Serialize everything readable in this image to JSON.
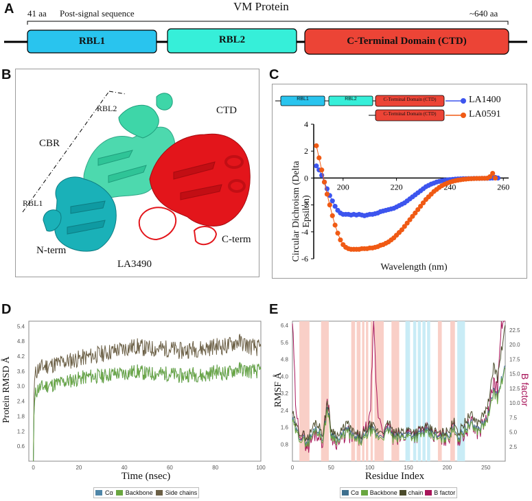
{
  "panelA": {
    "letter": "A",
    "title": "VM Protein",
    "start_label": "41 aa",
    "post_signal": "Post-signal sequence",
    "end_label": "~640 aa",
    "domains": [
      {
        "label": "RBL1",
        "color": "#29c4ee"
      },
      {
        "label": "RBL2",
        "color": "#36efd9"
      },
      {
        "label": "C-Terminal Domain (CTD)",
        "color": "#ec4436"
      }
    ]
  },
  "panelB": {
    "letter": "B",
    "labels": {
      "rbl2": "RBL2",
      "cbr": "CBR",
      "rbl1": "RBL1",
      "nterm": "N-term",
      "ctd": "CTD",
      "cterm": "C-term",
      "caption": "LA3490"
    },
    "colors": {
      "rbl1": "#1ab1b8",
      "rbl2": "#3ed6a8",
      "ctd": "#e3151b"
    }
  },
  "panelC": {
    "letter": "C",
    "legend": [
      {
        "name": "LA1400",
        "color": "#3d55ee",
        "domains": [
          "RBL1",
          "RBL2",
          "C-Terminal Domain (CTD)"
        ]
      },
      {
        "name": "LA0591",
        "color": "#f05a14",
        "domains": [
          "C-Terminal Domain (CTD)"
        ]
      }
    ]
  },
  "panelD": {
    "letter": "D",
    "legend": [
      {
        "name": "Cα",
        "color": "#4f86a8"
      },
      {
        "name": "Backbone",
        "color": "#6aa640"
      },
      {
        "name": "Side chains",
        "color": "#6b5f45"
      }
    ]
  },
  "panelE": {
    "letter": "E",
    "legend": [
      {
        "name": "Cα",
        "color": "#3e6f8e"
      },
      {
        "name": "Backbone",
        "color": "#6aa640"
      },
      {
        "name": "chain",
        "color": "#4a4a2a"
      },
      {
        "name": "B factor",
        "color": "#a8155a"
      }
    ],
    "shade_colors": {
      "pink": "#f9cfc7",
      "cyan": "#c9ecf6"
    }
  },
  "chart_data": [
    {
      "id": "cd_spectra",
      "type": "scatter",
      "title": "",
      "xlabel": "Wavelength (nm)",
      "ylabel": "Circular Dichroism (Delta Epsilon)",
      "xlim": [
        189,
        262
      ],
      "ylim": [
        -6,
        4
      ],
      "x_ticks": [
        200,
        220,
        240,
        260
      ],
      "y_ticks": [
        4,
        2,
        0,
        -2,
        -4,
        -6
      ],
      "series": [
        {
          "name": "LA1400",
          "color": "#3d55ee",
          "x": [
            190,
            191,
            192,
            193,
            194,
            195,
            196,
            197,
            198,
            199,
            200,
            201,
            202,
            203,
            204,
            205,
            206,
            207,
            208,
            209,
            210,
            211,
            212,
            213,
            214,
            215,
            216,
            217,
            218,
            219,
            220,
            221,
            222,
            223,
            224,
            225,
            226,
            227,
            228,
            229,
            230,
            231,
            232,
            233,
            234,
            235,
            236,
            237,
            238,
            239,
            240,
            241,
            242,
            243,
            244,
            245,
            246,
            247,
            248,
            249,
            250,
            251,
            252,
            253,
            254,
            255,
            256,
            257,
            258
          ],
          "y": [
            0.9,
            0.6,
            0.2,
            -0.3,
            -0.8,
            -1.3,
            -1.7,
            -2.1,
            -2.4,
            -2.6,
            -2.7,
            -2.7,
            -2.7,
            -2.75,
            -2.7,
            -2.75,
            -2.7,
            -2.75,
            -2.8,
            -2.75,
            -2.7,
            -2.7,
            -2.65,
            -2.6,
            -2.5,
            -2.45,
            -2.4,
            -2.35,
            -2.3,
            -2.25,
            -2.15,
            -2.05,
            -1.95,
            -1.85,
            -1.7,
            -1.55,
            -1.4,
            -1.25,
            -1.1,
            -0.95,
            -0.8,
            -0.65,
            -0.55,
            -0.45,
            -0.38,
            -0.3,
            -0.25,
            -0.2,
            -0.17,
            -0.14,
            -0.12,
            -0.1,
            -0.08,
            -0.07,
            -0.06,
            -0.05,
            -0.05,
            -0.04,
            -0.04,
            -0.03,
            -0.03,
            -0.03,
            -0.02,
            -0.02,
            -0.02,
            -0.01,
            0.0,
            0.05,
            0.0
          ]
        },
        {
          "name": "LA0591",
          "color": "#f05a14",
          "x": [
            190,
            191,
            192,
            193,
            194,
            195,
            196,
            197,
            198,
            199,
            200,
            201,
            202,
            203,
            204,
            205,
            206,
            207,
            208,
            209,
            210,
            211,
            212,
            213,
            214,
            215,
            216,
            217,
            218,
            219,
            220,
            221,
            222,
            223,
            224,
            225,
            226,
            227,
            228,
            229,
            230,
            231,
            232,
            233,
            234,
            235,
            236,
            237,
            238,
            239,
            240,
            241,
            242,
            243,
            244,
            245,
            246,
            247,
            248,
            249,
            250,
            251,
            252,
            253,
            254,
            255,
            256,
            257
          ],
          "y": [
            2.4,
            1.5,
            0.6,
            -0.3,
            -1.2,
            -2.0,
            -2.8,
            -3.5,
            -4.1,
            -4.6,
            -4.95,
            -5.15,
            -5.25,
            -5.3,
            -5.3,
            -5.3,
            -5.3,
            -5.25,
            -5.25,
            -5.25,
            -5.2,
            -5.2,
            -5.15,
            -5.1,
            -5.0,
            -4.95,
            -4.85,
            -4.75,
            -4.6,
            -4.45,
            -4.25,
            -4.05,
            -3.85,
            -3.6,
            -3.35,
            -3.1,
            -2.85,
            -2.6,
            -2.35,
            -2.1,
            -1.85,
            -1.6,
            -1.4,
            -1.2,
            -1.0,
            -0.85,
            -0.7,
            -0.57,
            -0.47,
            -0.38,
            -0.31,
            -0.25,
            -0.2,
            -0.16,
            -0.13,
            -0.1,
            -0.08,
            -0.06,
            -0.05,
            -0.04,
            -0.03,
            -0.03,
            -0.02,
            -0.02,
            -0.01,
            0.1,
            0.35,
            0.0
          ]
        }
      ]
    },
    {
      "id": "rmsd",
      "type": "line",
      "xlabel": "Time (nsec)",
      "ylabel": "Protein RMSD Å",
      "xlim": [
        -2,
        100
      ],
      "ylim": [
        0,
        5.6
      ],
      "x_ticks": [
        0,
        20,
        40,
        60,
        80,
        100
      ],
      "y_ticks": [
        0.6,
        1.2,
        1.8,
        2.4,
        3.0,
        3.6,
        4.2,
        4.8,
        5.4
      ],
      "y_tick_labels": [
        "0.6",
        "1.2",
        "1.8",
        "2.4",
        "3.0",
        "3.6",
        "4.2",
        "4.8",
        "5.4"
      ],
      "series": [
        {
          "name": "Cα",
          "color": "#4f86a8",
          "x": [
            0,
            0.3,
            1,
            2,
            5,
            10,
            15,
            20,
            25,
            30,
            35,
            40,
            45,
            50,
            55,
            60,
            65,
            70,
            75,
            80,
            85,
            90,
            95,
            100
          ],
          "y": [
            0,
            2.2,
            2.7,
            2.9,
            3.0,
            3.1,
            3.2,
            3.3,
            3.4,
            3.4,
            3.5,
            3.5,
            3.6,
            3.5,
            3.5,
            3.5,
            3.4,
            3.5,
            3.4,
            3.6,
            3.5,
            3.7,
            3.6,
            3.6
          ]
        },
        {
          "name": "Backbone",
          "color": "#6aa640",
          "x": [
            0,
            0.3,
            1,
            2,
            5,
            10,
            15,
            20,
            25,
            30,
            35,
            40,
            45,
            50,
            55,
            60,
            65,
            70,
            75,
            80,
            85,
            90,
            95,
            100
          ],
          "y": [
            0,
            2.2,
            2.7,
            2.9,
            3.0,
            3.1,
            3.2,
            3.3,
            3.4,
            3.4,
            3.5,
            3.5,
            3.6,
            3.5,
            3.5,
            3.5,
            3.4,
            3.5,
            3.4,
            3.6,
            3.5,
            3.7,
            3.6,
            3.6
          ]
        },
        {
          "name": "Side chains",
          "color": "#6b5f45",
          "x": [
            0,
            0.3,
            1,
            2,
            5,
            10,
            15,
            20,
            25,
            30,
            35,
            40,
            45,
            50,
            55,
            60,
            65,
            70,
            75,
            80,
            85,
            90,
            95,
            100
          ],
          "y": [
            0,
            3.1,
            3.5,
            3.7,
            3.8,
            3.9,
            4.0,
            4.1,
            4.2,
            4.3,
            4.4,
            4.5,
            4.6,
            4.5,
            4.5,
            4.5,
            4.4,
            4.5,
            4.5,
            4.6,
            4.6,
            4.8,
            4.6,
            4.5
          ]
        }
      ]
    },
    {
      "id": "rmsf",
      "type": "line",
      "xlabel": "Residue Index",
      "ylabel": "RMSF Å",
      "y2label": "B factor",
      "xlim": [
        0,
        275
      ],
      "ylim": [
        0,
        6.6
      ],
      "y2lim": [
        0,
        24
      ],
      "x_ticks": [
        0,
        50,
        100,
        150,
        200,
        250
      ],
      "y_ticks": [
        0.8,
        1.6,
        2.4,
        3.2,
        4.0,
        4.8,
        5.6,
        6.4
      ],
      "y2_ticks": [
        2.5,
        5.0,
        7.5,
        10.0,
        12.5,
        15.0,
        17.5,
        20.0,
        22.5
      ],
      "shaded_regions": [
        {
          "x0": 9,
          "x1": 22,
          "color": "pink"
        },
        {
          "x0": 37,
          "x1": 47,
          "color": "pink"
        },
        {
          "x0": 76,
          "x1": 81,
          "color": "pink"
        },
        {
          "x0": 83,
          "x1": 88,
          "color": "pink"
        },
        {
          "x0": 90,
          "x1": 93,
          "color": "pink"
        },
        {
          "x0": 95,
          "x1": 98,
          "color": "pink"
        },
        {
          "x0": 101,
          "x1": 104,
          "color": "pink"
        },
        {
          "x0": 106,
          "x1": 118,
          "color": "pink"
        },
        {
          "x0": 128,
          "x1": 138,
          "color": "pink"
        },
        {
          "x0": 146,
          "x1": 152,
          "color": "cyan"
        },
        {
          "x0": 156,
          "x1": 160,
          "color": "cyan"
        },
        {
          "x0": 162,
          "x1": 166,
          "color": "cyan"
        },
        {
          "x0": 168,
          "x1": 172,
          "color": "cyan"
        },
        {
          "x0": 174,
          "x1": 178,
          "color": "cyan"
        },
        {
          "x0": 188,
          "x1": 193,
          "color": "pink"
        },
        {
          "x0": 204,
          "x1": 210,
          "color": "pink"
        },
        {
          "x0": 213,
          "x1": 223,
          "color": "cyan"
        }
      ],
      "series": [
        {
          "name": "Cα",
          "color": "#3e6f8e",
          "x": [
            0,
            5,
            12,
            20,
            30,
            40,
            45,
            50,
            60,
            70,
            80,
            90,
            100,
            105,
            110,
            120,
            125,
            130,
            140,
            150,
            160,
            170,
            180,
            190,
            200,
            210,
            215,
            220,
            230,
            240,
            250,
            255,
            260,
            265,
            270,
            275
          ],
          "y": [
            2.0,
            1.4,
            1.1,
            0.9,
            1.6,
            1.1,
            2.6,
            1.3,
            1.0,
            1.5,
            1.1,
            1.0,
            1.5,
            1.4,
            1.2,
            1.3,
            1.6,
            1.1,
            1.2,
            1.3,
            1.2,
            1.4,
            1.3,
            1.1,
            1.2,
            1.6,
            1.1,
            1.4,
            1.8,
            1.5,
            1.9,
            2.4,
            3.4,
            3.0,
            3.8,
            4.4
          ]
        },
        {
          "name": "Backbone",
          "color": "#6aa640",
          "x": [
            0,
            5,
            12,
            20,
            30,
            40,
            45,
            50,
            60,
            70,
            80,
            90,
            100,
            105,
            110,
            120,
            125,
            130,
            140,
            150,
            160,
            170,
            180,
            190,
            200,
            210,
            215,
            220,
            230,
            240,
            250,
            255,
            260,
            265,
            270,
            275
          ],
          "y": [
            1.9,
            1.3,
            1.0,
            0.8,
            1.5,
            1.0,
            2.5,
            1.2,
            0.9,
            1.4,
            1.0,
            0.9,
            1.4,
            1.3,
            1.1,
            1.2,
            1.5,
            1.0,
            1.1,
            1.2,
            1.1,
            1.3,
            1.2,
            1.0,
            1.1,
            1.5,
            1.0,
            1.3,
            1.7,
            1.4,
            1.8,
            2.3,
            3.3,
            2.9,
            3.7,
            4.3
          ]
        },
        {
          "name": "chain",
          "color": "#4a4a2a",
          "x": [
            0,
            5,
            12,
            20,
            30,
            40,
            45,
            50,
            60,
            70,
            80,
            90,
            100,
            105,
            110,
            120,
            125,
            130,
            140,
            150,
            160,
            170,
            180,
            190,
            200,
            210,
            215,
            220,
            230,
            240,
            250,
            255,
            260,
            265,
            270,
            275
          ],
          "y": [
            2.3,
            1.6,
            1.3,
            1.1,
            1.9,
            1.3,
            2.9,
            1.5,
            1.2,
            1.8,
            1.3,
            1.2,
            1.7,
            1.6,
            1.4,
            1.5,
            1.9,
            1.3,
            1.4,
            1.5,
            1.4,
            1.6,
            1.5,
            1.3,
            1.4,
            1.9,
            1.3,
            1.7,
            2.2,
            1.8,
            2.4,
            3.0,
            4.6,
            3.9,
            5.2,
            6.3
          ]
        },
        {
          "name": "B factor",
          "color": "#a8155a",
          "x": [
            0,
            5,
            12,
            20,
            30,
            40,
            45,
            50,
            60,
            70,
            80,
            90,
            100,
            105,
            110,
            120,
            125,
            130,
            140,
            150,
            160,
            170,
            180,
            190,
            200,
            210,
            215,
            220,
            230,
            240,
            250,
            255,
            260,
            265,
            270,
            275
          ],
          "y": [
            24,
            7.0,
            4.5,
            2.5,
            5.0,
            3.5,
            11.0,
            4.5,
            3.0,
            5.0,
            3.5,
            4.0,
            7.0,
            23.0,
            8.5,
            4.5,
            6.0,
            4.0,
            4.0,
            5.0,
            4.5,
            5.5,
            4.5,
            4.0,
            4.0,
            6.0,
            3.5,
            4.5,
            6.5,
            5.0,
            7.0,
            9.0,
            14.0,
            12.0,
            24,
            24
          ]
        }
      ]
    }
  ]
}
